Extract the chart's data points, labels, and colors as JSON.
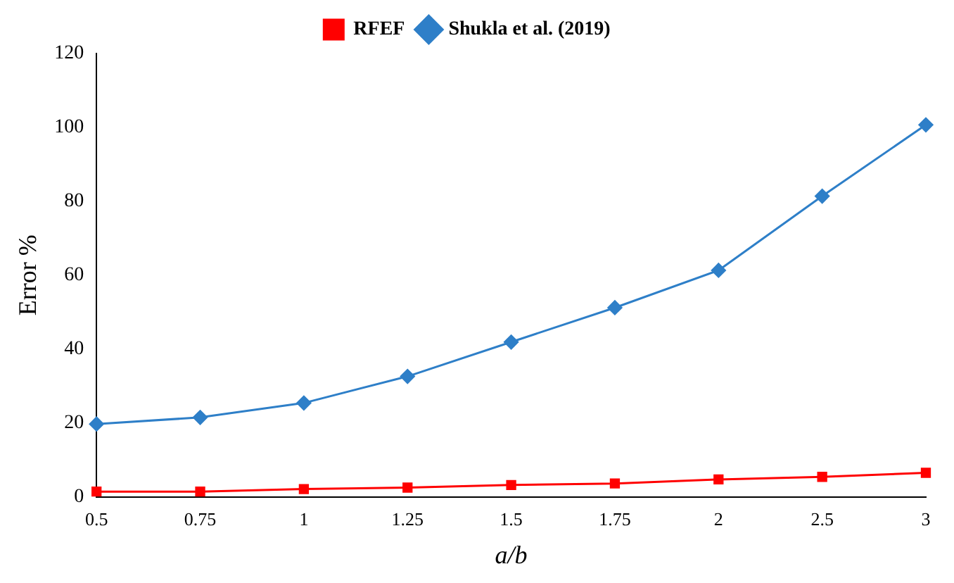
{
  "chart_data": {
    "type": "line",
    "xlabel": "a/b",
    "ylabel": "Error %",
    "categories": [
      "0.5",
      "0.75",
      "1",
      "1.25",
      "1.5",
      "1.75",
      "2",
      "2.5",
      "3"
    ],
    "series": [
      {
        "name": "RFEF",
        "color": "#ff0000",
        "marker": "square",
        "values": [
          1.4,
          1.4,
          2.1,
          2.5,
          3.2,
          3.6,
          4.7,
          5.4,
          6.5
        ]
      },
      {
        "name": "Shukla et al. (2019)",
        "color": "#2e7fc8",
        "marker": "diamond",
        "values": [
          19.7,
          21.5,
          25.4,
          32.6,
          41.9,
          51.2,
          61.3,
          81.4,
          100.7
        ]
      }
    ],
    "ylim": [
      0,
      120
    ],
    "yticks": [
      0,
      20,
      40,
      60,
      80,
      100,
      120
    ],
    "grid": false,
    "legend": "top",
    "line_style": "solid"
  }
}
